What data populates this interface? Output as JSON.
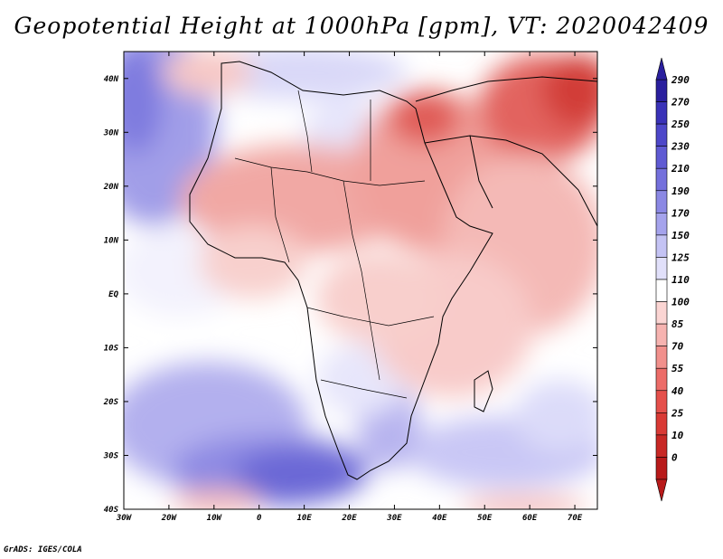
{
  "figure": {
    "title": "Geopotential Height at 1000hPa [gpm], VT: 2020042409",
    "credit": "GrADS: IGES/COLA"
  },
  "map": {
    "lon_range": [
      -30,
      75
    ],
    "lat_range": [
      -40,
      45
    ],
    "lat_labels": [
      "40N",
      "30N",
      "20N",
      "10N",
      "EQ",
      "10S",
      "20S",
      "30S",
      "40S"
    ],
    "lat_values": [
      40,
      30,
      20,
      10,
      0,
      -10,
      -20,
      -30,
      -40
    ],
    "lon_labels": [
      "30W",
      "20W",
      "10W",
      "0",
      "10E",
      "20E",
      "30E",
      "40E",
      "50E",
      "60E",
      "70E"
    ],
    "lon_values": [
      -30,
      -20,
      -10,
      0,
      10,
      20,
      30,
      40,
      50,
      60,
      70
    ]
  },
  "colorbar": {
    "labels": [
      "290",
      "270",
      "250",
      "230",
      "210",
      "190",
      "170",
      "150",
      "125",
      "110",
      "100",
      "85",
      "70",
      "55",
      "40",
      "25",
      "10",
      "0"
    ],
    "colors": [
      "#2a1f9e",
      "#3a32b8",
      "#4d47c9",
      "#5f5ad3",
      "#7470dc",
      "#8b88e4",
      "#a5a3ec",
      "#c4c3f4",
      "#e1e0fa",
      "#ffffff",
      "#fbd5d3",
      "#f6b3b0",
      "#f1908c",
      "#ec6c68",
      "#e5504b",
      "#d93a35",
      "#c82825",
      "#b81a1a"
    ]
  }
}
